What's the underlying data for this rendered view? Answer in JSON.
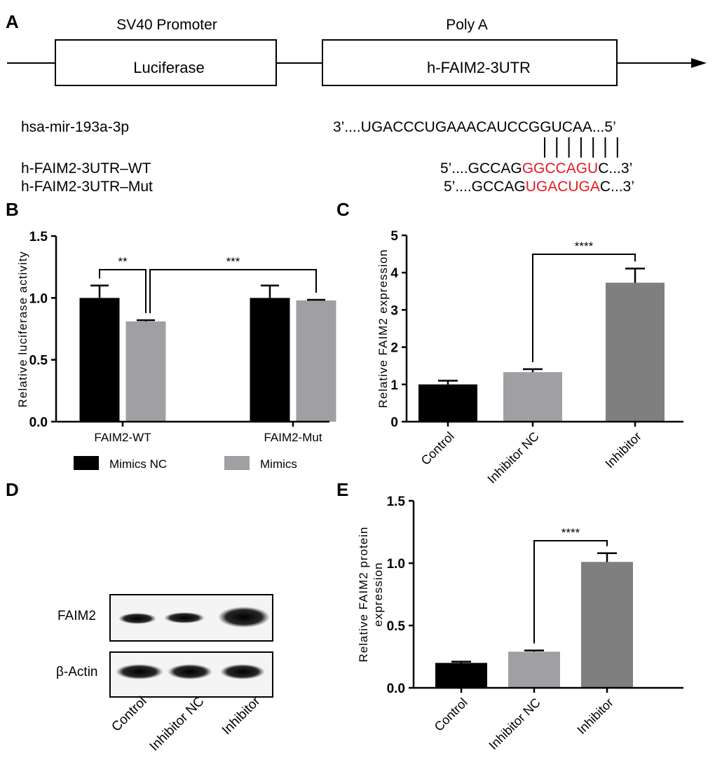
{
  "panel_labels": {
    "a": "A",
    "b": "B",
    "c": "C",
    "d": "D",
    "e": "E"
  },
  "construct": {
    "promoter_label": "SV40 Promoter",
    "polya_label": "Poly A",
    "box1_label": "Luciferase",
    "box2_label": "h-FAIM2-3UTR"
  },
  "sequences": {
    "mirna_name": "hsa-mir-193a-3p",
    "mirna_seq": "3’....UGACCCUGAAACAUCCGGUCAA...5’",
    "wt_name": "h-FAIM2-3UTR–WT",
    "wt_prefix": "5’....GCCAG",
    "wt_core": "GGCCAGU",
    "wt_suffix": "C...3’",
    "mut_name": "h-FAIM2-3UTR–Mut",
    "mut_prefix": "5’....GCCAG",
    "mut_core": "UGACUGA",
    "mut_suffix": "C...3’",
    "highlight_color": "#e8191f",
    "pairing_lines": 7
  },
  "blot": {
    "bands": [
      "FAIM2",
      "β-Actin"
    ],
    "lanes": [
      "Control",
      "Inhibitor NC",
      "Inhibitor"
    ]
  },
  "chart_data": [
    {
      "panel": "B",
      "type": "bar",
      "categories": [
        "FAIM2-WT",
        "FAIM2-Mut"
      ],
      "series": [
        {
          "name": "Mimics NC",
          "values": [
            1.0,
            1.0
          ],
          "errors": [
            0.1,
            0.1
          ],
          "color": "#000000"
        },
        {
          "name": "Mimics",
          "values": [
            0.81,
            0.98
          ],
          "errors": [
            0.01,
            0.005
          ],
          "color": "#a0a0a4"
        }
      ],
      "ylabel": "Relative luciferase activity",
      "ylim": [
        0,
        1.5
      ],
      "yticks": [
        "0.0",
        "0.5",
        "1.0",
        "1.5"
      ],
      "legend": "bottom",
      "significance": [
        {
          "label": "**",
          "from": "FAIM2-WT Mimics NC",
          "to": "FAIM2-WT Mimics"
        },
        {
          "label": "***",
          "from": "FAIM2-WT Mimics",
          "to": "FAIM2-Mut Mimics"
        }
      ]
    },
    {
      "panel": "C",
      "type": "bar",
      "categories": [
        "Control",
        "Inhibitor NC",
        "Inhibitor"
      ],
      "values": [
        1.0,
        1.33,
        3.73
      ],
      "errors": [
        0.1,
        0.08,
        0.38
      ],
      "colors": [
        "#000000",
        "#a0a0a4",
        "#7f7f7f"
      ],
      "ylabel": "Relative FAIM2 expression",
      "ylim": [
        0,
        5
      ],
      "yticks": [
        "0",
        "1",
        "2",
        "3",
        "4",
        "5"
      ],
      "significance": [
        {
          "label": "****",
          "from": "Inhibitor NC",
          "to": "Inhibitor"
        }
      ]
    },
    {
      "panel": "E",
      "type": "bar",
      "categories": [
        "Control",
        "Inhibitor NC",
        "Inhibitor"
      ],
      "values": [
        0.2,
        0.29,
        1.01
      ],
      "errors": [
        0.01,
        0.01,
        0.07
      ],
      "colors": [
        "#000000",
        "#a0a0a4",
        "#7f7f7f"
      ],
      "ylabel": [
        "Relative FAIM2 protein",
        "expression"
      ],
      "ylim": [
        0,
        1.5
      ],
      "yticks": [
        "0.0",
        "0.5",
        "1.0",
        "1.5"
      ],
      "significance": [
        {
          "label": "****",
          "from": "Inhibitor NC",
          "to": "Inhibitor"
        }
      ]
    }
  ]
}
